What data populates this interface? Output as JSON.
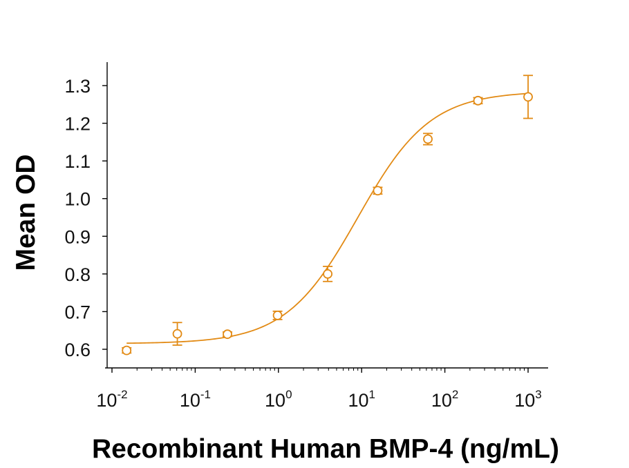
{
  "chart_data": {
    "type": "scatter",
    "title": "",
    "xlabel": "Recombinant Human BMP-4 (ng/mL)",
    "ylabel": "Mean OD",
    "xscale": "log",
    "xlim": [
      0.01,
      1000
    ],
    "ylim": [
      0.55,
      1.36
    ],
    "grid": false,
    "legend": "none",
    "color": "#E28A14",
    "x_ticks": [
      {
        "base": "10",
        "exp": "-2"
      },
      {
        "base": "10",
        "exp": "-1"
      },
      {
        "base": "10",
        "exp": "0"
      },
      {
        "base": "10",
        "exp": "1"
      },
      {
        "base": "10",
        "exp": "2"
      },
      {
        "base": "10",
        "exp": "3"
      }
    ],
    "y_ticks": [
      "0.6",
      "0.7",
      "0.8",
      "0.9",
      "1.0",
      "1.1",
      "1.2",
      "1.3"
    ],
    "series": [
      {
        "x": [
          0.015,
          0.061,
          0.244,
          0.977,
          3.91,
          15.6,
          62.5,
          250,
          1000
        ],
        "y": [
          0.597,
          0.641,
          0.64,
          0.69,
          0.8,
          1.021,
          1.158,
          1.26,
          1.27
        ],
        "error": [
          0.007,
          0.03,
          0.006,
          0.011,
          0.02,
          0.009,
          0.015,
          0.008,
          0.057
        ]
      }
    ],
    "fit_curve": {
      "model": "4PL",
      "bottom": 0.615,
      "top": 1.285,
      "ec50": 9.0,
      "hill": 1.0
    }
  }
}
